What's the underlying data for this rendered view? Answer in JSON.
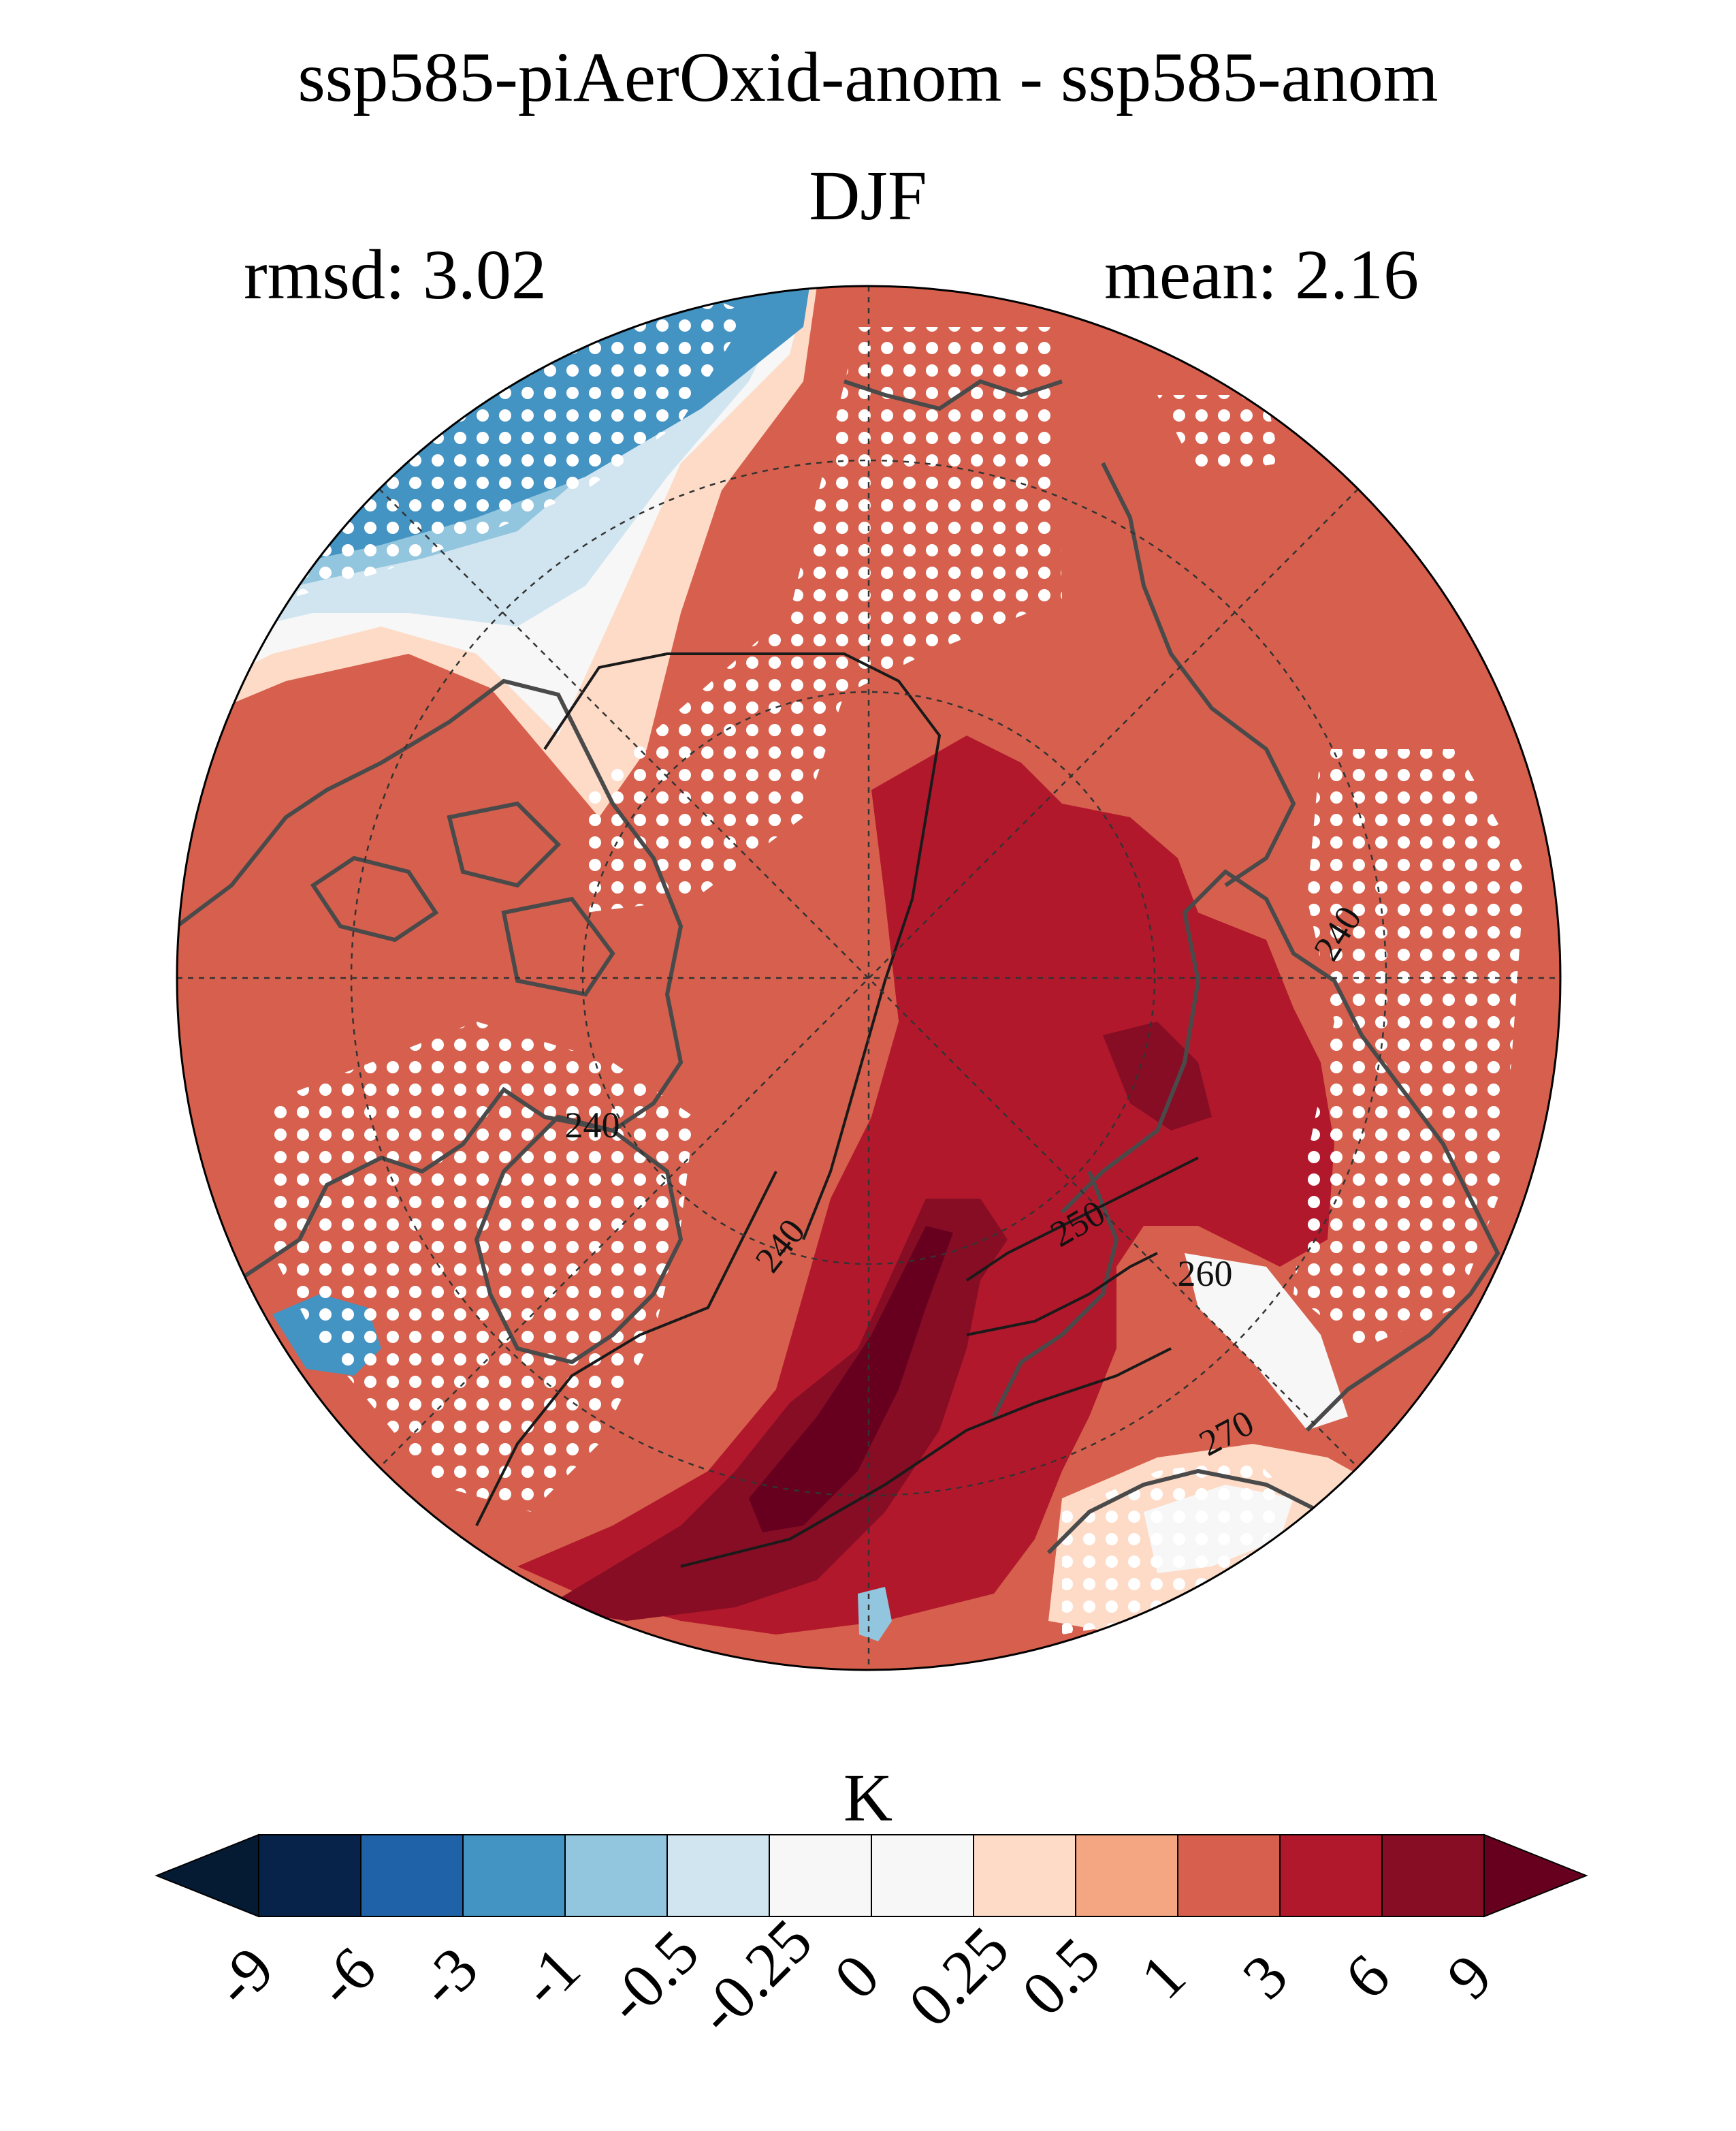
{
  "figure": {
    "title": "ssp585-piAerOxid-anom - ssp585-anom",
    "season": "DJF",
    "rmsd_text": "rmsd: 3.02",
    "mean_text": "mean: 2.16"
  },
  "map": {
    "projection": "north-polar-stereographic",
    "contour_labels": [
      "240",
      "240",
      "240",
      "250",
      "260",
      "270"
    ],
    "regions": [
      {
        "name": "central-arctic-warm-core",
        "level": "3 to 6"
      },
      {
        "name": "barents-kara-max",
        "level": "6 to 9"
      },
      {
        "name": "north-atlantic-tongue",
        "level": "6 to 9"
      },
      {
        "name": "north-america-cooling",
        "level": "-3 to -0.5"
      },
      {
        "name": "background-warming",
        "level": "1 to 3"
      }
    ],
    "stippling": "white dots"
  },
  "colorbar": {
    "unit": "K",
    "ticks": [
      "-9",
      "-6",
      "-3",
      "-1",
      "-0.5",
      "-0.25",
      "0",
      "0.25",
      "0.5",
      "1",
      "3",
      "6",
      "9"
    ],
    "colors": [
      "#08234a",
      "#1f62a8",
      "#4393c3",
      "#92c5de",
      "#d1e5f0",
      "#f7f7f7",
      "#f7f7f7",
      "#fddbc7",
      "#f4a582",
      "#d6604d",
      "#b2182b",
      "#860d24"
    ],
    "under_color": "#051a33",
    "over_color": "#67001f"
  },
  "palette": {
    "bg_warm": "#d6604d",
    "warm_core": "#b2182b",
    "warm_max": "#860d24",
    "warm_peak": "#67001f",
    "light_warm": "#f4a582",
    "pale_warm": "#fddbc7",
    "neutral": "#f7f7f7",
    "light_cool": "#d1e5f0",
    "mid_cool": "#92c5de",
    "cool": "#4393c3",
    "coast": "#4a4a4a"
  }
}
